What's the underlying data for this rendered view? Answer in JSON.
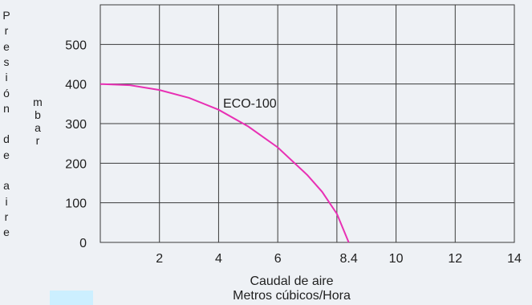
{
  "chart_data": {
    "type": "line",
    "xlabel": "Caudal de aire",
    "xlabel_sub": "Metros cúbicos/Hora",
    "ylabel_1": "Presión de aire",
    "ylabel_2": "mbar",
    "xlim": [
      0,
      14
    ],
    "ylim": [
      0,
      600
    ],
    "x_ticks": [
      {
        "value": 2,
        "label": "2"
      },
      {
        "value": 4,
        "label": "4"
      },
      {
        "value": 6,
        "label": "6"
      },
      {
        "value": 8.4,
        "label": "8.4"
      },
      {
        "value": 10,
        "label": "10"
      },
      {
        "value": 12,
        "label": "12"
      },
      {
        "value": 14,
        "label": "14"
      }
    ],
    "y_ticks": [
      0,
      100,
      200,
      300,
      400,
      500
    ],
    "grid": true,
    "series": [
      {
        "name": "ECO-100",
        "color": "#e830b4",
        "x": [
          0,
          1,
          2,
          3,
          4,
          5,
          6,
          7,
          7.5,
          8,
          8.4
        ],
        "y": [
          400,
          397,
          385,
          365,
          335,
          293,
          240,
          170,
          128,
          72,
          0
        ]
      }
    ]
  }
}
